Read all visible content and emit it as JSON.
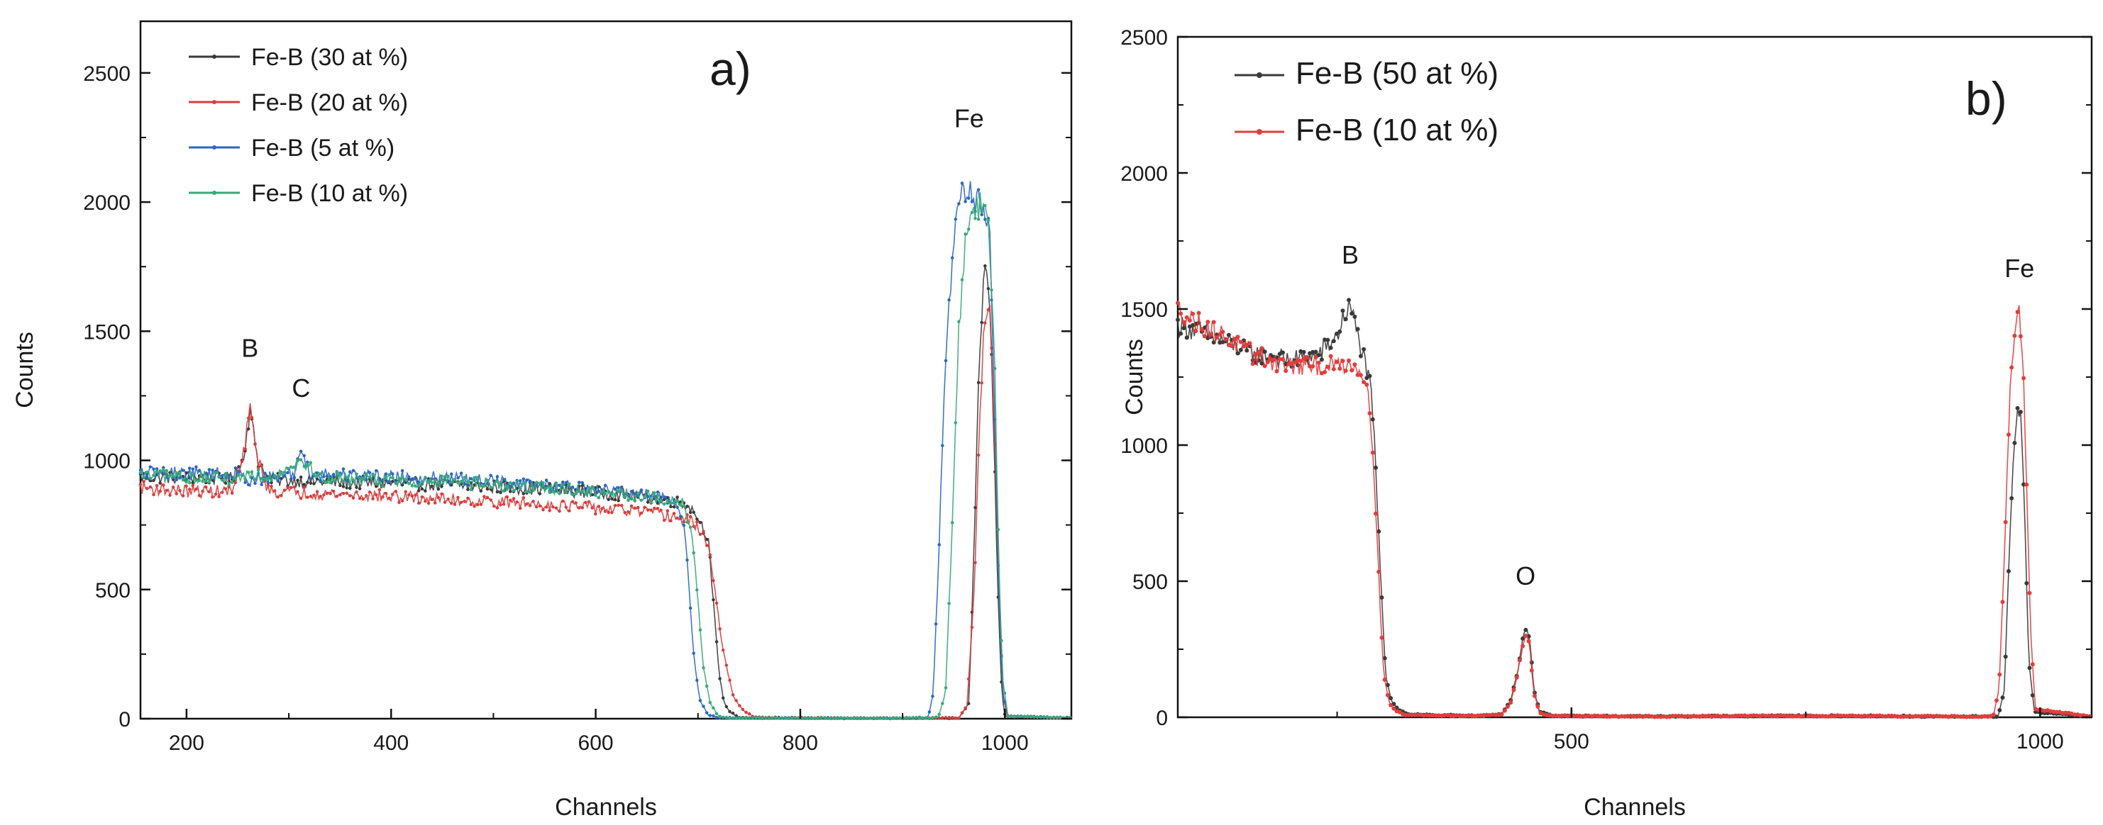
{
  "chart_data": [
    {
      "panel": "a)",
      "type": "line",
      "xlabel": "Channels",
      "ylabel": "Counts",
      "xlim": [
        155,
        1065
      ],
      "ylim": [
        0,
        2700
      ],
      "xticks": [
        200,
        400,
        600,
        800,
        1000
      ],
      "yticks": [
        0,
        500,
        1000,
        1500,
        2000,
        2500
      ],
      "annotations": [
        {
          "text": "B",
          "x": 262,
          "y": 1340
        },
        {
          "text": "C",
          "x": 312,
          "y": 1185
        },
        {
          "text": "Fe",
          "x": 965,
          "y": 2230
        }
      ],
      "series": [
        {
          "name": "Fe-B (30 at %)",
          "color": "#3a3a3a",
          "points": [
            [
              155,
              935
            ],
            [
              200,
              935
            ],
            [
              245,
              930
            ],
            [
              255,
              1000
            ],
            [
              262,
              1190
            ],
            [
              270,
              1000
            ],
            [
              280,
              925
            ],
            [
              350,
              915
            ],
            [
              450,
              905
            ],
            [
              550,
              890
            ],
            [
              650,
              860
            ],
            [
              690,
              830
            ],
            [
              700,
              780
            ],
            [
              710,
              700
            ],
            [
              715,
              450
            ],
            [
              720,
              200
            ],
            [
              725,
              70
            ],
            [
              730,
              30
            ],
            [
              740,
              5
            ],
            [
              800,
              3
            ],
            [
              900,
              2
            ],
            [
              955,
              3
            ],
            [
              965,
              60
            ],
            [
              970,
              700
            ],
            [
              975,
              1400
            ],
            [
              980,
              1740
            ],
            [
              985,
              1650
            ],
            [
              990,
              1000
            ],
            [
              993,
              500
            ],
            [
              997,
              100
            ],
            [
              1000,
              10
            ],
            [
              1065,
              3
            ]
          ]
        },
        {
          "name": "Fe-B (20 at %)",
          "color": "#d73e3e",
          "points": [
            [
              155,
              895
            ],
            [
              200,
              880
            ],
            [
              245,
              880
            ],
            [
              255,
              1000
            ],
            [
              262,
              1200
            ],
            [
              270,
              1000
            ],
            [
              280,
              880
            ],
            [
              350,
              870
            ],
            [
              450,
              850
            ],
            [
              550,
              830
            ],
            [
              650,
              800
            ],
            [
              690,
              770
            ],
            [
              700,
              740
            ],
            [
              710,
              680
            ],
            [
              718,
              450
            ],
            [
              725,
              250
            ],
            [
              735,
              80
            ],
            [
              745,
              30
            ],
            [
              755,
              5
            ],
            [
              800,
              3
            ],
            [
              900,
              2
            ],
            [
              955,
              3
            ],
            [
              963,
              50
            ],
            [
              970,
              500
            ],
            [
              975,
              1100
            ],
            [
              980,
              1560
            ],
            [
              985,
              1640
            ],
            [
              990,
              1100
            ],
            [
              994,
              500
            ],
            [
              998,
              100
            ],
            [
              1002,
              10
            ],
            [
              1065,
              3
            ]
          ]
        },
        {
          "name": "Fe-B (5 at %)",
          "color": "#2b67c2",
          "points": [
            [
              155,
              950
            ],
            [
              200,
              950
            ],
            [
              250,
              945
            ],
            [
              262,
              925
            ],
            [
              280,
              930
            ],
            [
              305,
              950
            ],
            [
              312,
              1050
            ],
            [
              320,
              950
            ],
            [
              350,
              945
            ],
            [
              450,
              930
            ],
            [
              550,
              905
            ],
            [
              650,
              870
            ],
            [
              680,
              840
            ],
            [
              688,
              700
            ],
            [
              692,
              450
            ],
            [
              697,
              200
            ],
            [
              702,
              70
            ],
            [
              710,
              15
            ],
            [
              720,
              3
            ],
            [
              800,
              2
            ],
            [
              900,
              2
            ],
            [
              925,
              5
            ],
            [
              930,
              100
            ],
            [
              935,
              600
            ],
            [
              942,
              1400
            ],
            [
              950,
              1850
            ],
            [
              958,
              2050
            ],
            [
              966,
              2030
            ],
            [
              975,
              2000
            ],
            [
              985,
              1900
            ],
            [
              990,
              1200
            ],
            [
              994,
              500
            ],
            [
              998,
              100
            ],
            [
              1003,
              10
            ],
            [
              1065,
              3
            ]
          ]
        },
        {
          "name": "Fe-B (10 at %)",
          "color": "#38a87a",
          "points": [
            [
              155,
              940
            ],
            [
              200,
              935
            ],
            [
              250,
              930
            ],
            [
              262,
              950
            ],
            [
              280,
              935
            ],
            [
              312,
              1000
            ],
            [
              330,
              935
            ],
            [
              350,
              930
            ],
            [
              450,
              915
            ],
            [
              550,
              895
            ],
            [
              650,
              860
            ],
            [
              685,
              835
            ],
            [
              695,
              700
            ],
            [
              700,
              450
            ],
            [
              705,
              200
            ],
            [
              712,
              60
            ],
            [
              720,
              10
            ],
            [
              730,
              3
            ],
            [
              800,
              2
            ],
            [
              900,
              2
            ],
            [
              935,
              5
            ],
            [
              942,
              100
            ],
            [
              948,
              700
            ],
            [
              955,
              1500
            ],
            [
              962,
              1900
            ],
            [
              968,
              1980
            ],
            [
              976,
              1990
            ],
            [
              984,
              1940
            ],
            [
              990,
              1400
            ],
            [
              994,
              600
            ],
            [
              998,
              150
            ],
            [
              1003,
              10
            ],
            [
              1065,
              3
            ]
          ]
        }
      ]
    },
    {
      "panel": "b)",
      "type": "line",
      "xlabel": "Channels",
      "ylabel": "Counts",
      "xlim": [
        80,
        1055
      ],
      "ylim": [
        0,
        2500
      ],
      "xticks": [
        500,
        1000
      ],
      "yticks": [
        0,
        500,
        1000,
        1500,
        2000,
        2500
      ],
      "annotations": [
        {
          "text": "B",
          "x": 264,
          "y": 1610
        },
        {
          "text": "O",
          "x": 451,
          "y": 430
        },
        {
          "text": "Fe",
          "x": 978,
          "y": 1560
        }
      ],
      "series": [
        {
          "name": "Fe-B (50 at %)",
          "color": "#3a3a3a",
          "points": [
            [
              80,
              1440
            ],
            [
              100,
              1420
            ],
            [
              130,
              1380
            ],
            [
              160,
              1340
            ],
            [
              200,
              1310
            ],
            [
              230,
              1330
            ],
            [
              250,
              1400
            ],
            [
              258,
              1480
            ],
            [
              264,
              1510
            ],
            [
              270,
              1430
            ],
            [
              280,
              1300
            ],
            [
              286,
              1200
            ],
            [
              290,
              1000
            ],
            [
              294,
              700
            ],
            [
              298,
              400
            ],
            [
              302,
              150
            ],
            [
              308,
              60
            ],
            [
              315,
              30
            ],
            [
              325,
              10
            ],
            [
              400,
              5
            ],
            [
              425,
              10
            ],
            [
              435,
              60
            ],
            [
              442,
              160
            ],
            [
              448,
              290
            ],
            [
              452,
              330
            ],
            [
              456,
              260
            ],
            [
              460,
              100
            ],
            [
              466,
              20
            ],
            [
              480,
              5
            ],
            [
              600,
              3
            ],
            [
              700,
              5
            ],
            [
              800,
              5
            ],
            [
              900,
              3
            ],
            [
              955,
              3
            ],
            [
              962,
              100
            ],
            [
              966,
              500
            ],
            [
              972,
              1000
            ],
            [
              976,
              1140
            ],
            [
              980,
              1100
            ],
            [
              984,
              700
            ],
            [
              988,
              200
            ],
            [
              994,
              20
            ],
            [
              1055,
              3
            ]
          ]
        },
        {
          "name": "Fe-B (10 at %)",
          "color": "#e23d3d",
          "points": [
            [
              80,
              1500
            ],
            [
              100,
              1450
            ],
            [
              130,
              1400
            ],
            [
              160,
              1330
            ],
            [
              200,
              1290
            ],
            [
              240,
              1290
            ],
            [
              260,
              1300
            ],
            [
              275,
              1280
            ],
            [
              283,
              1200
            ],
            [
              288,
              1000
            ],
            [
              292,
              700
            ],
            [
              296,
              400
            ],
            [
              300,
              150
            ],
            [
              306,
              50
            ],
            [
              312,
              25
            ],
            [
              322,
              8
            ],
            [
              400,
              5
            ],
            [
              425,
              10
            ],
            [
              435,
              50
            ],
            [
              442,
              150
            ],
            [
              448,
              260
            ],
            [
              452,
              320
            ],
            [
              456,
              240
            ],
            [
              460,
              90
            ],
            [
              466,
              15
            ],
            [
              480,
              5
            ],
            [
              600,
              3
            ],
            [
              700,
              5
            ],
            [
              800,
              5
            ],
            [
              900,
              3
            ],
            [
              950,
              3
            ],
            [
              956,
              100
            ],
            [
              962,
              600
            ],
            [
              968,
              1200
            ],
            [
              974,
              1460
            ],
            [
              978,
              1480
            ],
            [
              982,
              1300
            ],
            [
              986,
              800
            ],
            [
              990,
              300
            ],
            [
              995,
              30
            ],
            [
              1055,
              3
            ]
          ]
        }
      ]
    }
  ]
}
